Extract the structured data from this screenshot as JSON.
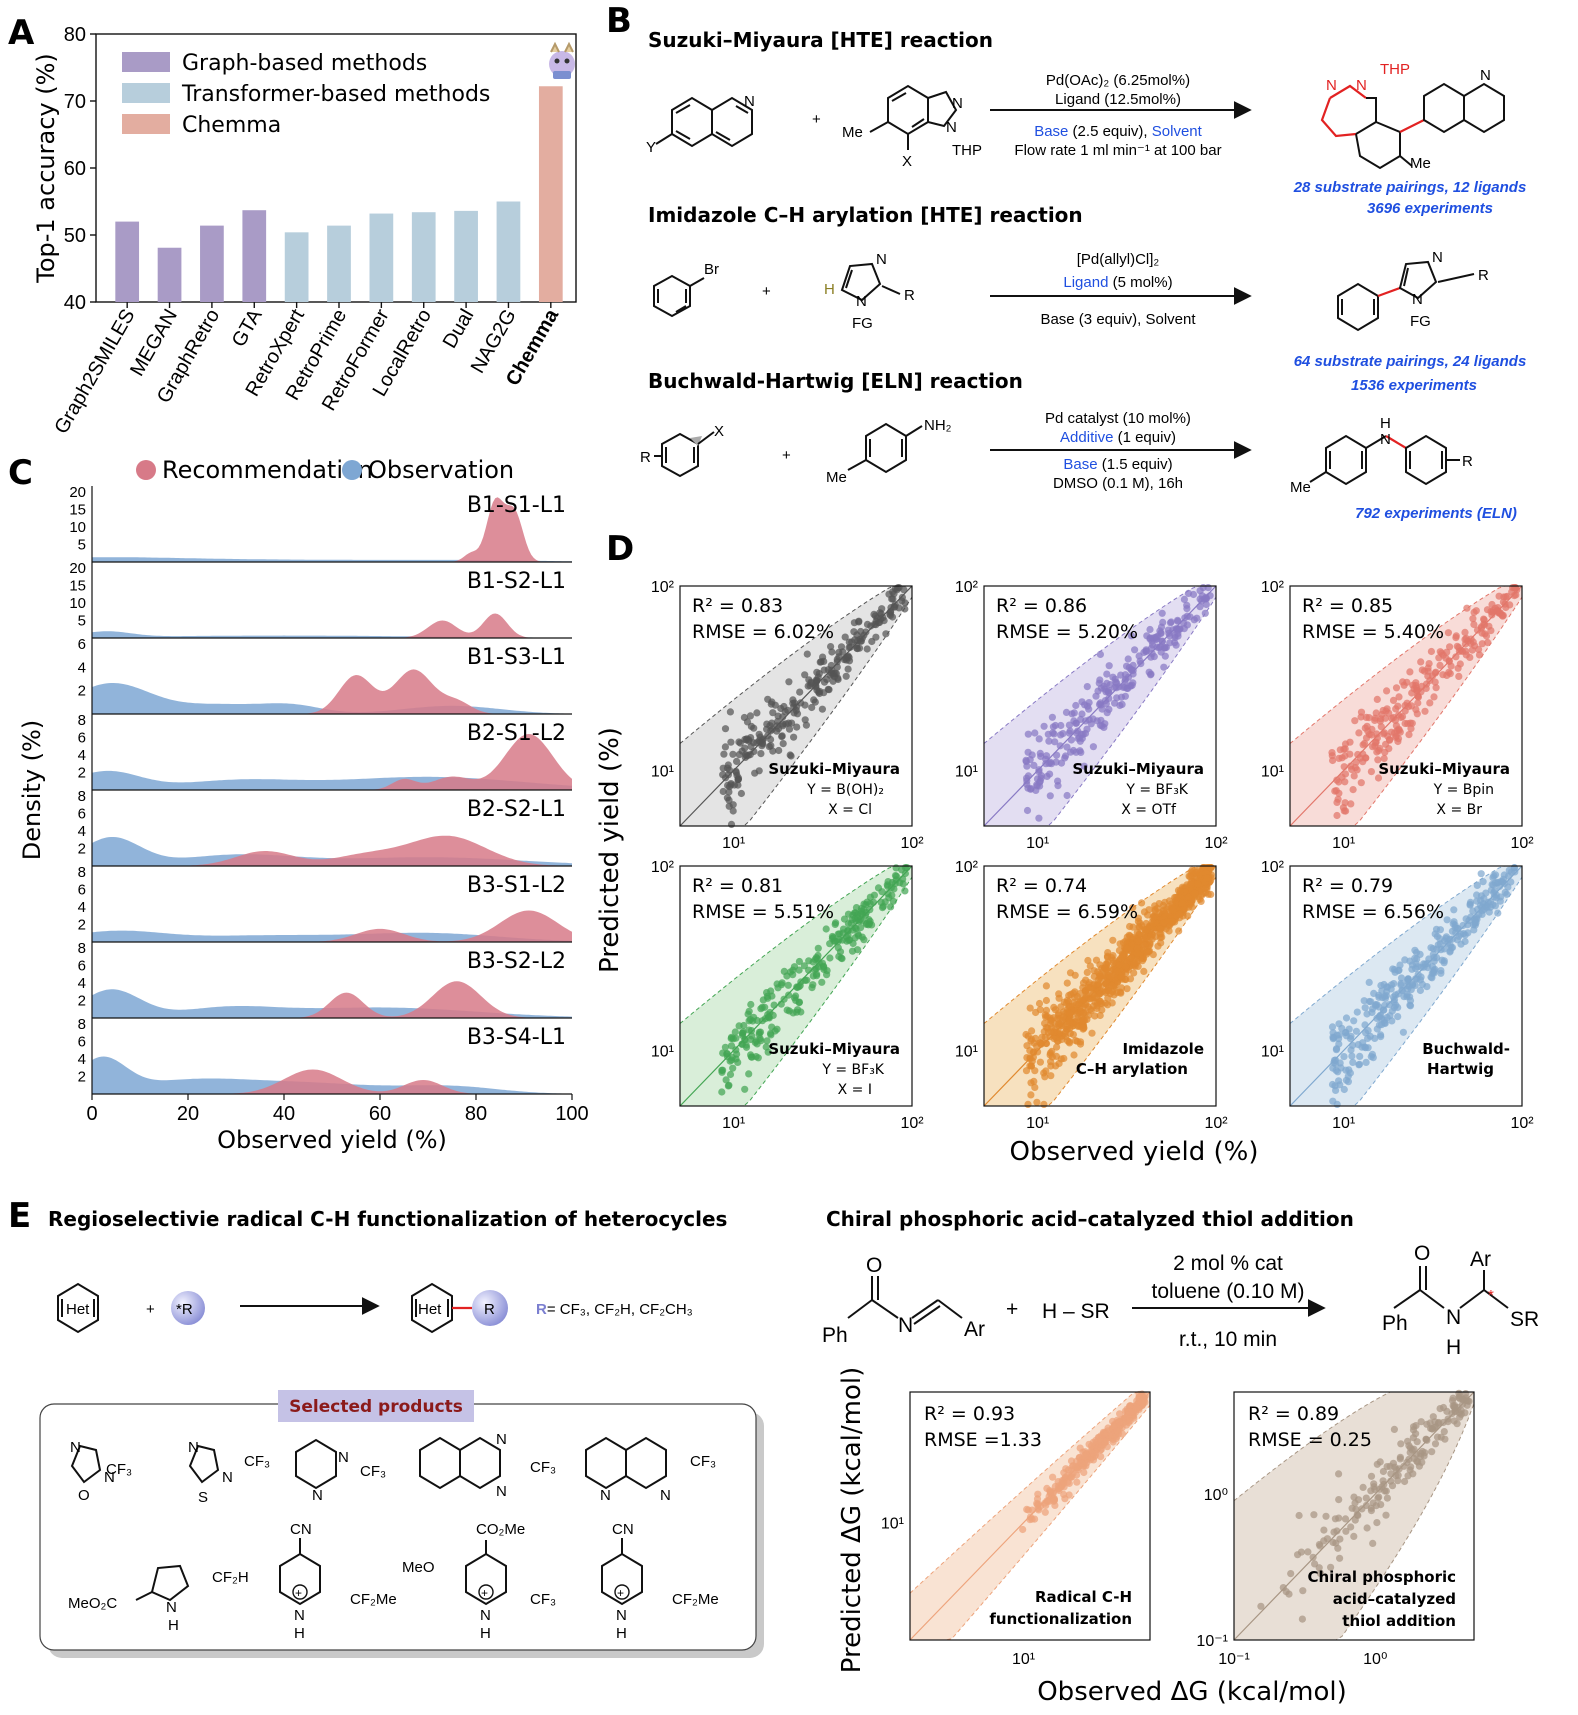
{
  "panels": {
    "A": "A",
    "B": "B",
    "C": "C",
    "D": "D",
    "E": "E"
  },
  "chart_data": [
    {
      "id": "A",
      "type": "bar",
      "ylabel": "Top-1 accuracy (%)",
      "ylim": [
        40,
        80
      ],
      "yticks": [
        40,
        50,
        60,
        70,
        80
      ],
      "categories": [
        "Graph2SMILES",
        "MEGAN",
        "GraphRetro",
        "GTA",
        "RetroXpert",
        "RetroPrime",
        "RetroFormer",
        "LocalRetro",
        "Dual",
        "NAG2G",
        "Chemma"
      ],
      "values": [
        52.0,
        48.1,
        51.4,
        53.7,
        50.4,
        51.4,
        53.2,
        53.4,
        53.6,
        55.0,
        72.2
      ],
      "groups": [
        "graph",
        "graph",
        "graph",
        "graph",
        "transformer",
        "transformer",
        "transformer",
        "transformer",
        "transformer",
        "transformer",
        "chemma"
      ],
      "legend": [
        {
          "key": "graph",
          "name": "Graph-based methods",
          "color": "#a99bc6"
        },
        {
          "key": "transformer",
          "name": "Transformer-based methods",
          "color": "#b7cedc"
        },
        {
          "key": "chemma",
          "name": "Chemma",
          "color": "#e3ada0"
        }
      ],
      "legend_position": "top-left",
      "bold_category": "Chemma"
    },
    {
      "id": "C",
      "type": "area",
      "xlabel": "Observed yield (%)",
      "ylabel": "Density (%)",
      "xlim": [
        0,
        100
      ],
      "xticks": [
        0,
        20,
        40,
        60,
        80,
        100
      ],
      "legend": [
        {
          "name": "Recommendation",
          "color": "#d77a88"
        },
        {
          "name": "Observation",
          "color": "#7ea7d3"
        }
      ],
      "legend_position": "top",
      "rows": [
        {
          "label": "B1-S1-L1",
          "yticks": [
            5,
            10,
            15,
            20
          ],
          "ymax": 20,
          "observation": [
            [
              0,
              1.2,
              18
            ],
            [
              40,
              0.6,
              25
            ],
            [
              80,
              0.4,
              15
            ]
          ],
          "recommendation": [
            [
              79,
              2.5,
              1.5
            ],
            [
              84,
              17,
              1.8
            ],
            [
              88,
              14,
              1.8
            ]
          ]
        },
        {
          "label": "B1-S2-L1",
          "yticks": [
            5,
            10,
            15,
            20
          ],
          "ymax": 20,
          "observation": [
            [
              3,
              1.6,
              5
            ],
            [
              40,
              0.7,
              30
            ]
          ],
          "recommendation": [
            [
              73,
              5,
              3
            ],
            [
              84,
              7,
              2.5
            ]
          ]
        },
        {
          "label": "B1-S3-L1",
          "yticks": [
            2,
            4,
            6
          ],
          "ymax": 6,
          "observation": [
            [
              4,
              2.6,
              8
            ],
            [
              27,
              0.8,
              10
            ],
            [
              42,
              0.6,
              6
            ],
            [
              75,
              0.7,
              10
            ]
          ],
          "recommendation": [
            [
              55,
              3.3,
              3.5
            ],
            [
              67,
              3.8,
              4
            ],
            [
              76,
              1,
              3
            ]
          ]
        },
        {
          "label": "B2-S1-L2",
          "yticks": [
            2,
            4,
            6,
            8
          ],
          "ymax": 8,
          "observation": [
            [
              3,
              2.1,
              7
            ],
            [
              30,
              1.0,
              12
            ],
            [
              70,
              1.5,
              20
            ]
          ],
          "recommendation": [
            [
              65,
              1.2,
              2.5
            ],
            [
              75,
              1.5,
              4
            ],
            [
              91,
              6.4,
              5
            ]
          ]
        },
        {
          "label": "B2-S2-L1",
          "yticks": [
            2,
            4,
            6,
            8
          ],
          "ymax": 8,
          "observation": [
            [
              4,
              3.2,
              6
            ],
            [
              30,
              1.2,
              12
            ],
            [
              70,
              1.0,
              20
            ]
          ],
          "recommendation": [
            [
              36,
              1.7,
              6
            ],
            [
              57,
              1.2,
              7
            ],
            [
              74,
              3.4,
              8
            ]
          ]
        },
        {
          "label": "B3-S1-L2",
          "yticks": [
            2,
            4,
            6,
            8
          ],
          "ymax": 8,
          "observation": [
            [
              5,
              1.2,
              10
            ],
            [
              35,
              0.7,
              15
            ],
            [
              70,
              1.0,
              15
            ]
          ],
          "recommendation": [
            [
              60,
              1.5,
              5
            ],
            [
              91,
              3.6,
              6
            ]
          ]
        },
        {
          "label": "B3-S2-L2",
          "yticks": [
            2,
            4,
            6,
            8
          ],
          "ymax": 8,
          "observation": [
            [
              4,
              3.2,
              6
            ],
            [
              28,
              1.0,
              10
            ],
            [
              60,
              1.2,
              20
            ]
          ],
          "recommendation": [
            [
              53,
              2.9,
              3.5
            ],
            [
              76,
              4.2,
              5
            ]
          ]
        },
        {
          "label": "B3-S4-L1",
          "yticks": [
            2,
            4,
            6,
            8
          ],
          "ymax": 8,
          "observation": [
            [
              2,
              3.8,
              5
            ],
            [
              20,
              1.4,
              12
            ],
            [
              45,
              1.2,
              15
            ],
            [
              75,
              0.8,
              10
            ]
          ],
          "recommendation": [
            [
              46,
              2.8,
              6
            ],
            [
              69,
              1.6,
              4
            ]
          ]
        }
      ]
    },
    {
      "id": "D",
      "type": "scatter",
      "xlabel": "Observed yield (%)",
      "ylabel": "Predicted yield (%)",
      "scale": "log",
      "xlim": [
        5,
        100
      ],
      "ylim": [
        5,
        100
      ],
      "subplots": [
        {
          "r2": "0.83",
          "rmse": "RMSE = 6.02%",
          "color": "#555555",
          "band": "#e4e4e4",
          "title": "Suzuki–Miyaura",
          "line1": "Y = B(OH)₂",
          "line2": "X = Cl",
          "n": 260
        },
        {
          "r2": "0.86",
          "rmse": "RMSE = 5.20%",
          "color": "#8879c4",
          "band": "#e3def2",
          "title": "Suzuki–Miyaura",
          "line1": "Y = BF₃K",
          "line2": "X = OTf",
          "n": 260
        },
        {
          "r2": "0.85",
          "rmse": "RMSE = 5.40%",
          "color": "#e2766a",
          "band": "#f8dcd8",
          "title": "Suzuki–Miyaura",
          "line1": "Y = Bpin",
          "line2": "X = Br",
          "n": 260
        },
        {
          "r2": "0.81",
          "rmse": "RMSE = 5.51%",
          "color": "#43a553",
          "band": "#d9eed9",
          "title": "Suzuki–Miyaura",
          "line1": "Y = BF₃K",
          "line2": "X = I",
          "n": 260
        },
        {
          "r2": "0.74",
          "rmse": "RMSE = 6.59%",
          "color": "#e0892f",
          "band": "#f7e1bf",
          "title": "Imidazole",
          "line1": "C–H arylation",
          "line2": "",
          "n": 900
        },
        {
          "r2": "0.79",
          "rmse": "RMSE = 6.56%",
          "color": "#7fa8cf",
          "band": "#dce8f2",
          "title": "Buchwald-",
          "line1": "Hartwig",
          "line2": "",
          "n": 320
        }
      ]
    },
    {
      "id": "E",
      "type": "scatter",
      "xlabel": "Observed ΔG (kcal/mol)",
      "ylabel": "Predicted ΔG (kcal/mol)",
      "scale": "log",
      "subplots": [
        {
          "r2": "0.93",
          "rmse": "RMSE =1.33",
          "color": "#eda37b",
          "band": "#f9e3d3",
          "label1": "Radical C-H",
          "label2": "functionalization",
          "xlim": [
            2,
            60
          ],
          "ylim": [
            2,
            60
          ],
          "tick": "10¹"
        },
        {
          "r2": "0.89",
          "rmse": "RMSE = 0.25",
          "color": "#a89684",
          "band": "#e8dfd6",
          "label1": "Chiral phosphoric",
          "label2": "acid–catalyzed",
          "label3": "thiol addition",
          "xlim": [
            0.1,
            5
          ],
          "ylim": [
            0.1,
            5
          ]
        }
      ]
    }
  ],
  "reactions": {
    "suzuki": {
      "title": "Suzuki–Miyaura [HTE] reaction",
      "cond1": "Pd(OAc)₂ (6.25mol%)",
      "cond2": "Ligand (12.5mol%)",
      "cond3a": "Base",
      "cond3b": " (2.5 equiv), ",
      "cond3c": "Solvent",
      "cond4": "Flow rate 1 ml min⁻¹ at 100 bar",
      "result1": "28 substrate pairings, 12 ligands",
      "result2": "3696 experiments",
      "atoms": {
        "Y": "Y",
        "N": "N",
        "Me": "Me",
        "X": "X",
        "THP": "THP",
        "plus": "+"
      }
    },
    "imidazole": {
      "title": "Imidazole C–H arylation [HTE] reaction",
      "cond1": "[Pd(allyl)Cl]₂",
      "cond2a": "Ligand",
      "cond2b": " (5 mol%)",
      "cond3": "Base (3 equiv), Solvent",
      "result1": "64 substrate pairings, 24 ligands",
      "result2": "1536 experiments",
      "atoms": {
        "Br": "Br",
        "H": "H",
        "N": "N",
        "R": "R",
        "FG": "FG",
        "plus": "+"
      }
    },
    "buchwald": {
      "title": "Buchwald-Hartwig [ELN] reaction",
      "cond1": "Pd catalyst (10 mol%)",
      "cond2a": "Additive",
      "cond2b": " (1 equiv)",
      "cond3a": "Base",
      "cond3b": " (1.5 equiv)",
      "cond4": "DMSO (0.1 M), 16h",
      "result1": "792 experiments (ELN)",
      "atoms": {
        "R": "R",
        "X": "X",
        "NH2": "NH₂",
        "Me": "Me",
        "H": "H",
        "N": "N",
        "plus": "+"
      }
    },
    "radical": {
      "title": "Regioselectivie radical C-H functionalization of heterocycles",
      "het": "Het",
      "rad": "*R",
      "R": "R",
      "plus": "+",
      "rdef1": "R",
      "rdef2": "= CF₃, CF₂H, CF₂CH₃",
      "selected": "Selected products",
      "products": {
        "cf3": "CF₃",
        "cf2h": "CF₂H",
        "cf2me": "CF₂Me",
        "cn": "CN",
        "co2me": "CO₂Me",
        "meo": "MeO",
        "meo2c": "MeO₂C",
        "N": "N",
        "O": "O",
        "S": "S",
        "H": "H",
        "plus": "+"
      }
    },
    "thiol": {
      "title": "Chiral phosphoric acid–catalyzed thiol addition",
      "cond1": "2 mol % cat",
      "cond2": "toluene (0.10 M)",
      "cond3": "r.t., 10 min",
      "hsr": "H – SR",
      "plus": "+",
      "atoms": {
        "O": "O",
        "Ph": "Ph",
        "N": "N",
        "Ar": "Ar",
        "SR": "SR",
        "H": "H",
        "star": "*"
      }
    }
  }
}
